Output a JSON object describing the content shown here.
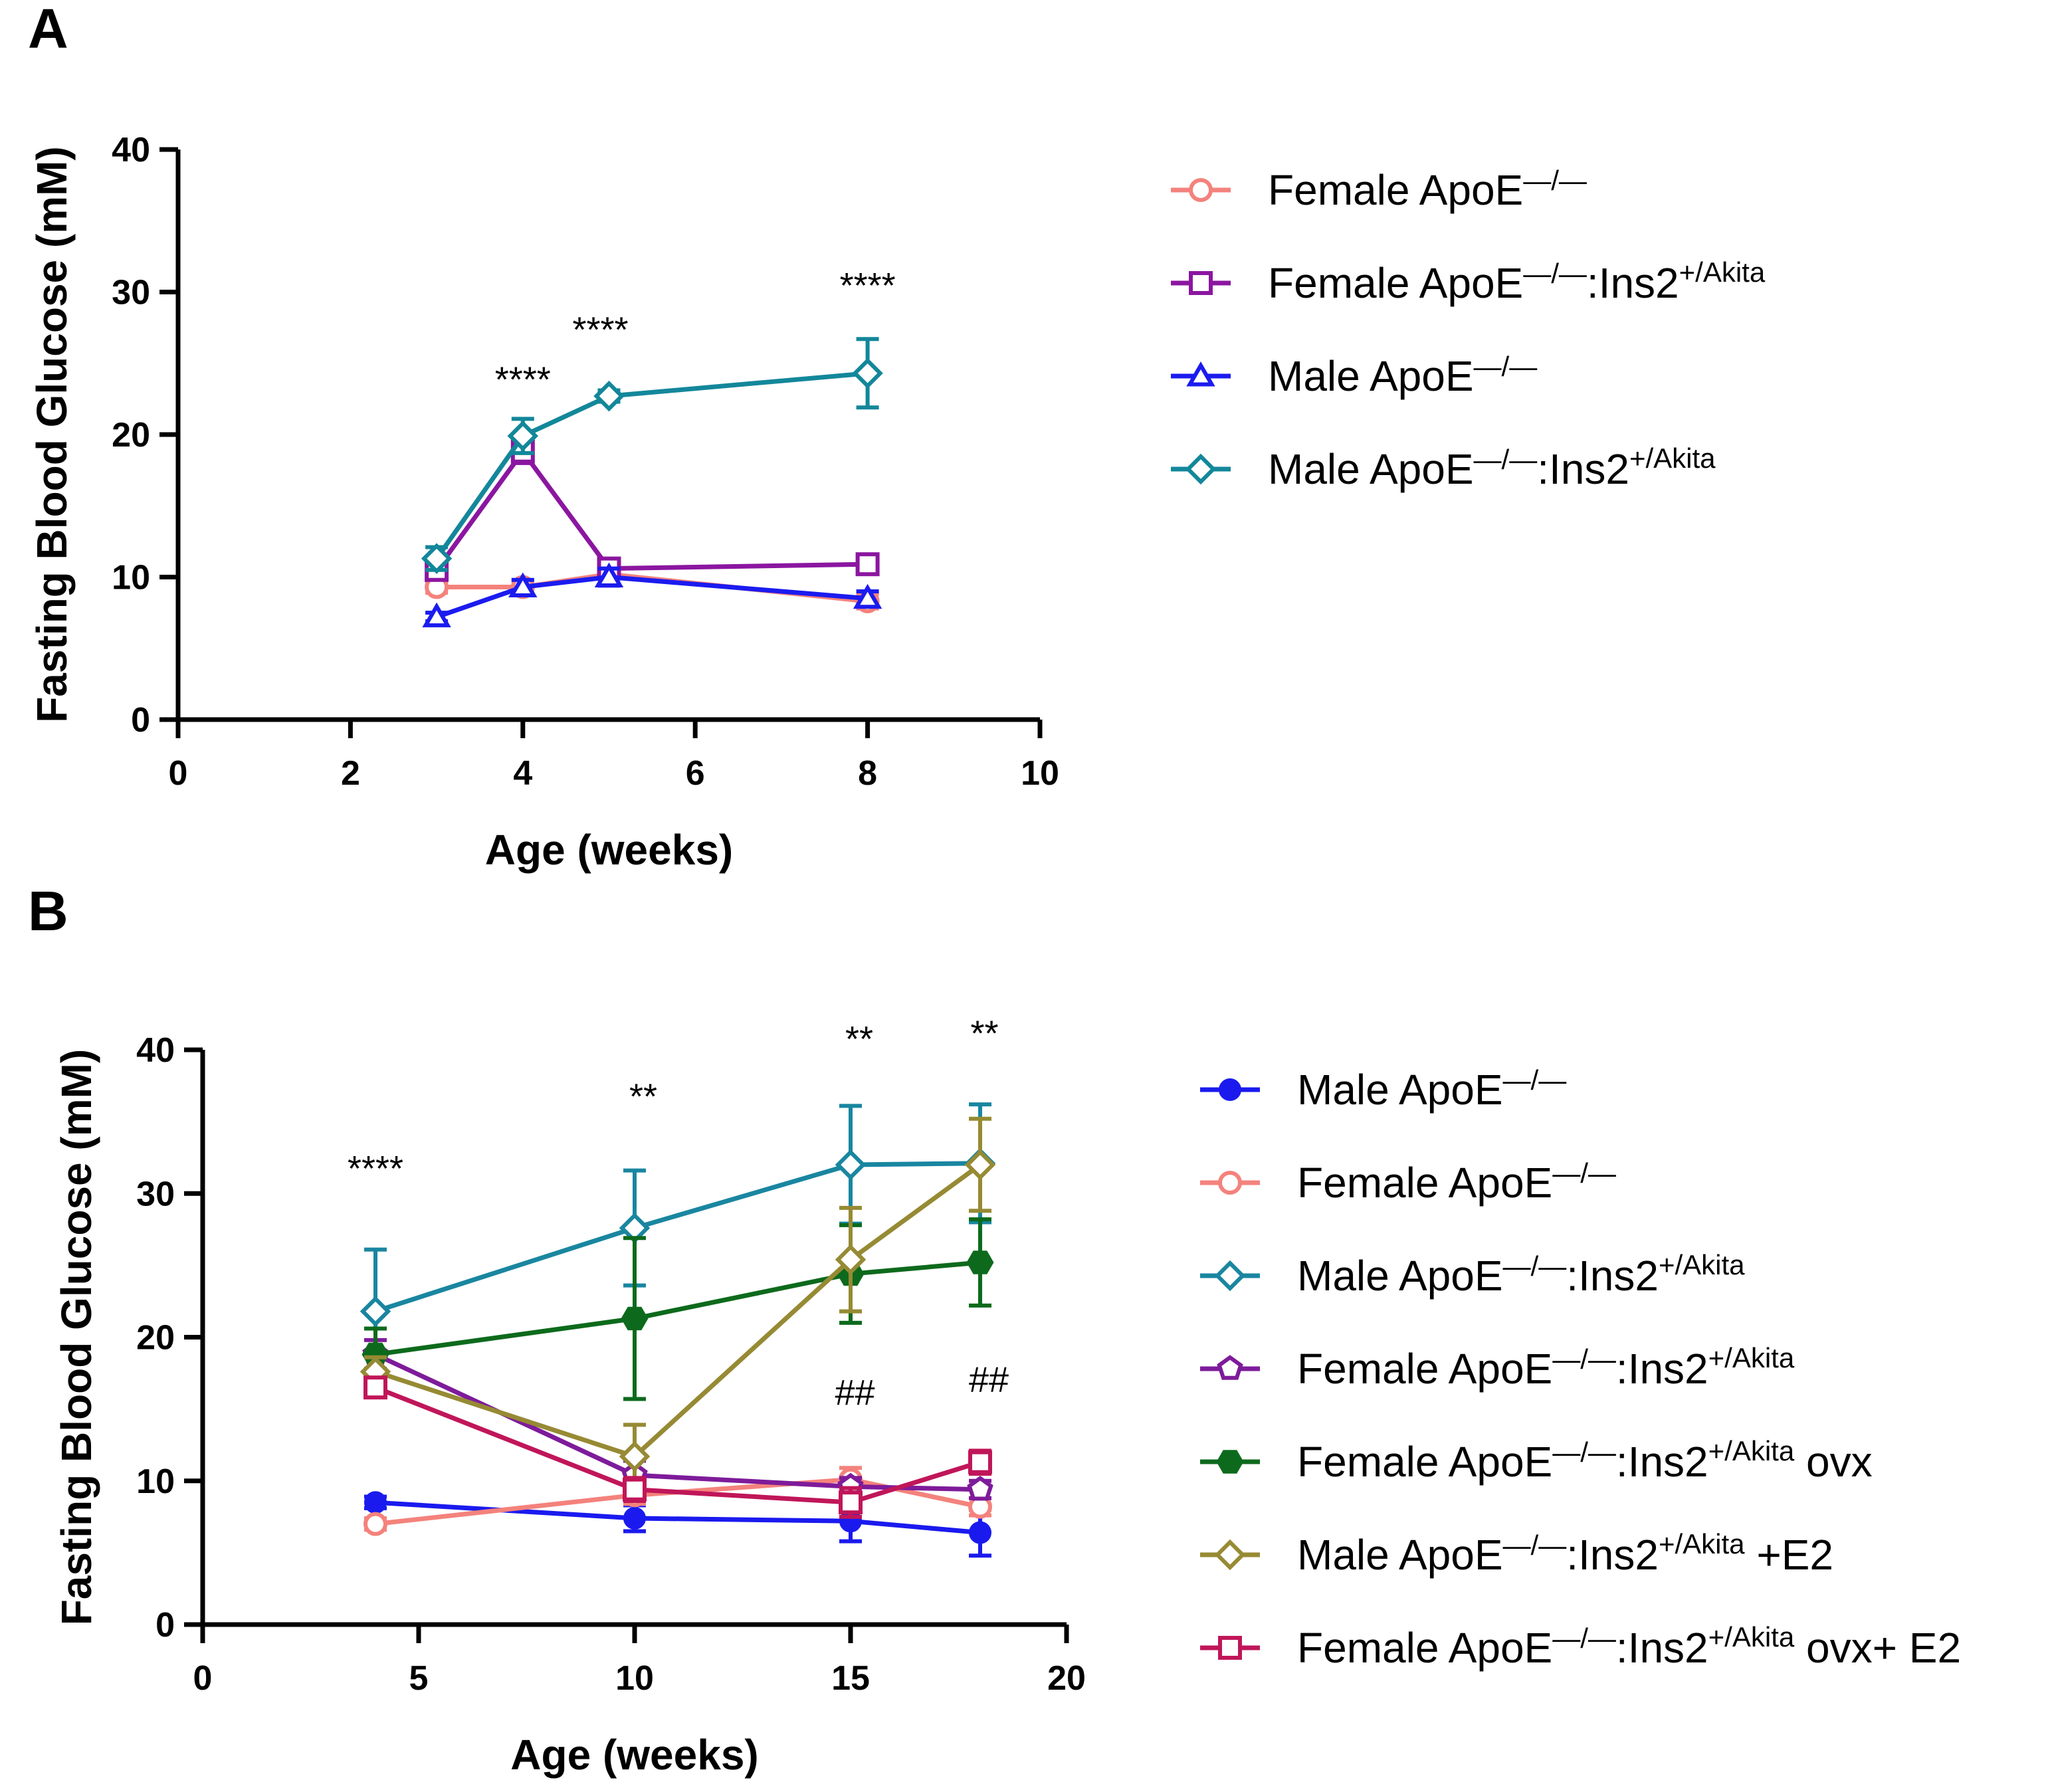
{
  "figure": {
    "superscript_ins2": "+/Akita",
    "apoe_ko_glyph": "—/—"
  },
  "chart_data": [
    {
      "panel": "A",
      "type": "line",
      "title": "",
      "xlabel": "Age (weeks)",
      "ylabel": "Fasting Blood  Glucose (mM)",
      "xlim": [
        0,
        10
      ],
      "ylim": [
        0,
        40
      ],
      "xticks": [
        0,
        2,
        4,
        6,
        8,
        10
      ],
      "yticks": [
        0,
        10,
        20,
        30,
        40
      ],
      "legend_position": "right",
      "series": [
        {
          "name": "Female ApoE",
          "sup": "—/—",
          "after": "",
          "sup2": "",
          "tail": "",
          "color": "#f4827c",
          "marker": "circle-open",
          "x": [
            3,
            4,
            5,
            8
          ],
          "y": [
            9.3,
            9.3,
            10.2,
            8.3
          ],
          "err": [
            0.4,
            0.4,
            0.6,
            0.5
          ]
        },
        {
          "name": "Female ApoE",
          "sup": "—/—",
          "after": ":Ins2",
          "sup2": "+/Akita",
          "tail": "",
          "color": "#8b16a0",
          "marker": "square-open",
          "x": [
            3,
            4,
            5,
            8
          ],
          "y": [
            10.5,
            18.8,
            10.6,
            10.9
          ],
          "err": [
            0.6,
            0.8,
            0.6,
            0.6
          ]
        },
        {
          "name": "Male ApoE",
          "sup": "—/—",
          "after": "",
          "sup2": "",
          "tail": "",
          "color": "#1b1bef",
          "marker": "triangle-open",
          "x": [
            3,
            4,
            5,
            8
          ],
          "y": [
            7.2,
            9.3,
            10.0,
            8.5
          ],
          "err": [
            0.3,
            0.5,
            0.6,
            0.5
          ]
        },
        {
          "name": "Male ApoE",
          "sup": "—/—",
          "after": ":Ins2",
          "sup2": "+/Akita",
          "tail": "",
          "color": "#13879a",
          "marker": "diamond-open",
          "x": [
            3,
            4,
            5,
            8
          ],
          "y": [
            11.3,
            19.9,
            22.7,
            24.3
          ],
          "err": [
            0.8,
            1.2,
            0.4,
            2.4
          ]
        }
      ],
      "annotations": [
        {
          "text": "****",
          "x": 4.0,
          "y": 23.0
        },
        {
          "text": "****",
          "x": 4.9,
          "y": 26.5
        },
        {
          "text": "****",
          "x": 8.0,
          "y": 29.6
        }
      ]
    },
    {
      "panel": "B",
      "type": "line",
      "title": "",
      "xlabel": "Age (weeks)",
      "ylabel": "Fasting Blood Glucose (mM)",
      "xlim": [
        0,
        20
      ],
      "ylim": [
        0,
        40
      ],
      "xticks": [
        0,
        5,
        10,
        15,
        20
      ],
      "yticks": [
        0,
        10,
        20,
        30,
        40
      ],
      "legend_position": "right",
      "series": [
        {
          "name": "Male ApoE",
          "sup": "—/—",
          "after": "",
          "sup2": "",
          "tail": "",
          "color": "#1a1aef",
          "marker": "circle-filled",
          "x": [
            4,
            10,
            15,
            18
          ],
          "y": [
            8.5,
            7.4,
            7.2,
            6.4
          ],
          "err": [
            0.4,
            0.9,
            1.4,
            1.6
          ]
        },
        {
          "name": "Female ApoE",
          "sup": "—/—",
          "after": "",
          "sup2": "",
          "tail": "",
          "color": "#f4827c",
          "marker": "circle-open",
          "x": [
            4,
            10,
            15,
            18
          ],
          "y": [
            7.0,
            9.0,
            10.1,
            8.2
          ],
          "err": [
            0.4,
            0.6,
            0.8,
            0.6
          ]
        },
        {
          "name": "Male ApoE",
          "sup": "—/—",
          "after": ":Ins2",
          "sup2": "+/Akita",
          "tail": "",
          "color": "#1986a0",
          "marker": "diamond-open",
          "x": [
            4,
            10,
            15,
            18
          ],
          "y": [
            21.8,
            27.6,
            32.0,
            32.1
          ],
          "err": [
            4.3,
            4.0,
            4.1,
            4.1
          ]
        },
        {
          "name": "Female ApoE",
          "sup": "—/—",
          "after": ":Ins2",
          "sup2": "+/Akita",
          "tail": "",
          "color": "#7e1b9a",
          "marker": "pentagon-open",
          "x": [
            4,
            10,
            15,
            18
          ],
          "y": [
            18.8,
            10.4,
            9.6,
            9.4
          ],
          "err": [
            1.0,
            1.0,
            0.6,
            0.6
          ]
        },
        {
          "name": "Female ApoE",
          "sup": "—/—",
          "after": ":Ins2",
          "sup2": "+/Akita",
          "tail": " ovx",
          "color": "#0d6a1c",
          "marker": "hexagon-filled",
          "x": [
            4,
            10,
            15,
            18
          ],
          "y": [
            18.8,
            21.3,
            24.4,
            25.2
          ],
          "err": [
            1.8,
            5.6,
            3.4,
            3.0
          ]
        },
        {
          "name": "Male ApoE",
          "sup": "—/—",
          "after": ":Ins2",
          "sup2": "+/Akita",
          "tail": " +E2",
          "color": "#968a34",
          "marker": "diamond-open",
          "x": [
            4,
            10,
            15,
            18
          ],
          "y": [
            17.6,
            11.7,
            25.4,
            32.0
          ],
          "err": [
            1.0,
            2.2,
            3.6,
            3.2
          ]
        },
        {
          "name": "Female ApoE",
          "sup": "—/—",
          "after": ":Ins2",
          "sup2": "+/Akita",
          "tail": " ovx+ E2",
          "color": "#c01659",
          "marker": "square-open",
          "x": [
            4,
            10,
            15,
            18
          ],
          "y": [
            16.5,
            9.4,
            8.5,
            11.3
          ],
          "err": [
            0.6,
            0.8,
            1.0,
            0.8
          ]
        }
      ],
      "annotations": [
        {
          "text": "****",
          "x": 4.0,
          "y": 30.9
        },
        {
          "text": "**",
          "x": 10.2,
          "y": 35.9
        },
        {
          "text": "**",
          "x": 15.2,
          "y": 39.9
        },
        {
          "text": "**",
          "x": 18.1,
          "y": 40.3
        },
        {
          "text": "##",
          "x": 15.1,
          "y": 15.3
        },
        {
          "text": "##",
          "x": 18.2,
          "y": 16.2
        }
      ]
    }
  ]
}
